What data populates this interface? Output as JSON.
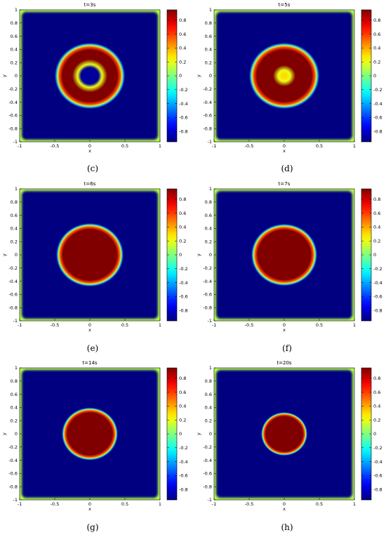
{
  "figure": {
    "panels": [
      {
        "id": "c",
        "title": "t=3s",
        "caption": "(c)"
      },
      {
        "id": "d",
        "title": "t=5s",
        "caption": "(d)"
      },
      {
        "id": "e",
        "title": "t=6s",
        "caption": "(e)"
      },
      {
        "id": "f",
        "title": "t=7s",
        "caption": "(f)"
      },
      {
        "id": "g",
        "title": "t=14s",
        "caption": "(g)"
      },
      {
        "id": "h",
        "title": "t=20s",
        "caption": "(h)"
      }
    ]
  },
  "chart_data": [
    {
      "type": "heatmap",
      "title": "t=3s",
      "xlabel": "x",
      "ylabel": "y",
      "xlim": [
        -1,
        1
      ],
      "ylim": [
        -1,
        1
      ],
      "xticks": [
        "-1",
        "-0.5",
        "0",
        "0.5",
        "1"
      ],
      "yticks": [
        "1",
        "0.8",
        "0.6",
        "0.4",
        "0.2",
        "0",
        "-0.2",
        "-0.4",
        "-0.6",
        "-0.8",
        "-1"
      ],
      "colorbar_ticks": [
        "0.8",
        "0.6",
        "0.4",
        "0.2",
        "0",
        "-0.2",
        "-0.4",
        "-0.6",
        "-0.8"
      ],
      "colorbar_range": [
        -0.95,
        0.95
      ],
      "colormap": "jet",
      "field": {
        "shape": "ring",
        "center": [
          0,
          0
        ],
        "outer_radius": 0.5,
        "inner_radius": 0.15,
        "inside_value": -0.9,
        "band_value": 0.95,
        "outside_value": -0.95,
        "boundary_value": 0.1
      }
    },
    {
      "type": "heatmap",
      "title": "t=5s",
      "xlabel": "x",
      "ylabel": "y",
      "xlim": [
        -1,
        1
      ],
      "ylim": [
        -1,
        1
      ],
      "xticks": [
        "-1",
        "-0.5",
        "0",
        "0.5",
        "1"
      ],
      "yticks": [
        "1",
        "0.8",
        "0.6",
        "0.4",
        "0.2",
        "0",
        "-0.2",
        "-0.4",
        "-0.6",
        "-0.8",
        "-1"
      ],
      "colorbar_ticks": [
        "0.8",
        "0.6",
        "0.4",
        "0.2",
        "0",
        "-0.2",
        "-0.4",
        "-0.6",
        "-0.8"
      ],
      "colorbar_range": [
        -0.95,
        0.95
      ],
      "colormap": "jet",
      "field": {
        "shape": "ring",
        "center": [
          0,
          0
        ],
        "outer_radius": 0.5,
        "inner_radius": 0.06,
        "inside_value": 0.3,
        "band_value": 0.95,
        "outside_value": -0.95,
        "boundary_value": 0.1
      }
    },
    {
      "type": "heatmap",
      "title": "t=6s",
      "xlabel": "x",
      "ylabel": "y",
      "xlim": [
        -1,
        1
      ],
      "ylim": [
        -1,
        1
      ],
      "xticks": [
        "-1",
        "-0.5",
        "0",
        "0.5",
        "1"
      ],
      "yticks": [
        "1",
        "0.8",
        "0.6",
        "0.4",
        "0.2",
        "0",
        "-0.2",
        "-0.4",
        "-0.6",
        "-0.8",
        "-1"
      ],
      "colorbar_ticks": [
        "0.8",
        "0.6",
        "0.4",
        "0.2",
        "0",
        "-0.2",
        "-0.4",
        "-0.6",
        "-0.8"
      ],
      "colorbar_range": [
        -0.95,
        0.95
      ],
      "colormap": "jet",
      "field": {
        "shape": "disk",
        "center": [
          0,
          0
        ],
        "radius": 0.48,
        "inside_value": 0.95,
        "outside_value": -0.95,
        "boundary_value": 0.1
      }
    },
    {
      "type": "heatmap",
      "title": "t=7s",
      "xlabel": "x",
      "ylabel": "y",
      "xlim": [
        -1,
        1
      ],
      "ylim": [
        -1,
        1
      ],
      "xticks": [
        "-1",
        "-0.5",
        "0",
        "0.5",
        "1"
      ],
      "yticks": [
        "1",
        "0.8",
        "0.6",
        "0.4",
        "0.2",
        "0",
        "-0.2",
        "-0.4",
        "-0.6",
        "-0.8",
        "-1"
      ],
      "colorbar_ticks": [
        "0.8",
        "0.6",
        "0.4",
        "0.2",
        "0",
        "-0.2",
        "-0.4",
        "-0.6",
        "-0.8"
      ],
      "colorbar_range": [
        -0.95,
        0.95
      ],
      "colormap": "jet",
      "field": {
        "shape": "disk",
        "center": [
          0,
          0
        ],
        "radius": 0.47,
        "inside_value": 0.95,
        "outside_value": -0.95,
        "boundary_value": 0.1
      }
    },
    {
      "type": "heatmap",
      "title": "t=14s",
      "xlabel": "x",
      "ylabel": "y",
      "xlim": [
        -1,
        1
      ],
      "ylim": [
        -1,
        1
      ],
      "xticks": [
        "-1",
        "-0.5",
        "0",
        "0.5",
        "1"
      ],
      "yticks": [
        "1",
        "0.8",
        "0.6",
        "0.4",
        "0.2",
        "0",
        "-0.2",
        "-0.4",
        "-0.6",
        "-0.8",
        "-1"
      ],
      "colorbar_ticks": [
        "0.8",
        "0.6",
        "0.4",
        "0.2",
        "0",
        "-0.2",
        "-0.4",
        "-0.6",
        "-0.8"
      ],
      "colorbar_range": [
        -0.95,
        0.95
      ],
      "colormap": "jet",
      "field": {
        "shape": "disk",
        "center": [
          0,
          0
        ],
        "radius": 0.4,
        "inside_value": 0.95,
        "outside_value": -0.95,
        "boundary_value": 0.1
      }
    },
    {
      "type": "heatmap",
      "title": "t=20s",
      "xlabel": "x",
      "ylabel": "y",
      "xlim": [
        -1,
        1
      ],
      "ylim": [
        -1,
        1
      ],
      "xticks": [
        "-1",
        "-0.5",
        "0",
        "0.5",
        "1"
      ],
      "yticks": [
        "1",
        "0.8",
        "0.6",
        "0.4",
        "0.2",
        "0",
        "-0.2",
        "-0.4",
        "-0.6",
        "-0.8",
        "-1"
      ],
      "colorbar_ticks": [
        "0.8",
        "0.6",
        "0.4",
        "0.2",
        "0",
        "-0.2",
        "-0.4",
        "-0.6",
        "-0.8"
      ],
      "colorbar_range": [
        -0.95,
        0.95
      ],
      "colormap": "jet",
      "field": {
        "shape": "disk",
        "center": [
          0,
          0
        ],
        "radius": 0.33,
        "inside_value": 0.95,
        "outside_value": -0.95,
        "boundary_value": 0.1
      }
    }
  ]
}
